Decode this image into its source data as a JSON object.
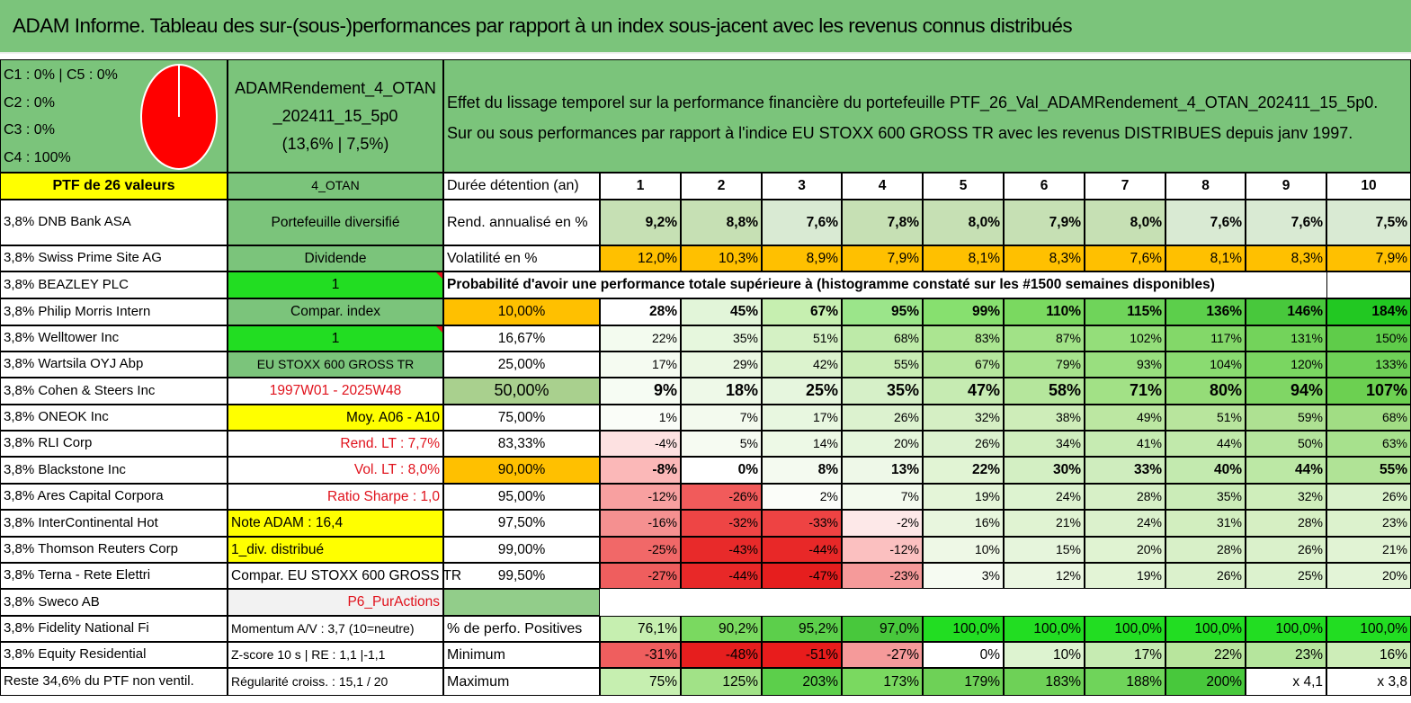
{
  "header": {
    "title": "ADAM Informe. Tableau des sur-(sous-)performances par rapport à un index sous-jacent avec les revenus connus distribués"
  },
  "pie": {
    "lines": [
      "C1 : 0% | C5 : 0%",
      "C2 : 0%",
      "C3 : 0%",
      "C4 : 100%"
    ],
    "color": "#ff0000"
  },
  "fund": {
    "name_line1": "ADAMRendement_4_OTAN",
    "name_line2": "_202411_15_5p0",
    "name_line3": "(13,6% | 7,5%)"
  },
  "description": {
    "line1": "Effet du lissage temporel sur la performance financière du portefeuille PTF_26_Val_ADAMRendement_4_OTAN_202411_15_5p0.",
    "line2": "Sur ou sous performances par rapport à l'indice EU STOXX 600 GROSS TR avec les revenus DISTRIBUES depuis janv 1997."
  },
  "left_header": "PTF de 26 valeurs",
  "holdings": [
    "3,8% DNB Bank ASA",
    "3,8% Swiss Prime Site AG",
    "3,8% BEAZLEY PLC",
    "3,8% Philip Morris Intern",
    "3,8% Welltower Inc",
    "3,8% Wartsila OYJ Abp",
    "3,8% Cohen & Steers Inc",
    "3,8% ONEOK Inc",
    "3,8% RLI Corp",
    "3,8% Blackstone Inc",
    "3,8% Ares Capital Corpora",
    "3,8% InterContinental Hot",
    "3,8% Thomson Reuters Corp",
    "3,8% Terna - Rete Elettri",
    "3,8% Sweco AB",
    "3,8% Fidelity National Fi",
    "3,8% Equity Residential",
    "Reste 34,6% du PTF non ventil."
  ],
  "info": [
    "4_OTAN",
    "Portefeuille diversifié",
    "Dividende",
    "1",
    "Compar. index",
    "1",
    "EU STOXX 600 GROSS TR",
    "1997W01 - 2025W48",
    "Moy. A06 - A10",
    "Rend. LT : 7,7%",
    "Vol. LT : 8,0%",
    "Ratio Sharpe : 1,0",
    "Note ADAM : 16,4",
    "1_div. distribué",
    "Compar. EU STOXX 600 GROSS TR",
    "P6_PurActions",
    "Momentum A/V : 3,7 (10=neutre)",
    "Z-score 10 s | RE : 1,1 |-1,1",
    "Régularité croiss. : 15,1 / 20"
  ],
  "table": {
    "duration_label": "Durée détention (an)",
    "years": [
      "1",
      "2",
      "3",
      "4",
      "5",
      "6",
      "7",
      "8",
      "9",
      "10"
    ],
    "rend_label": "Rend. annualisé en %",
    "rend": [
      "9,2%",
      "8,8%",
      "7,6%",
      "7,8%",
      "8,0%",
      "7,9%",
      "8,0%",
      "7,6%",
      "7,6%",
      "7,5%"
    ],
    "vol_label": "Volatilité en %",
    "vol": [
      "12,0%",
      "10,3%",
      "8,9%",
      "7,9%",
      "8,1%",
      "8,3%",
      "7,6%",
      "8,1%",
      "8,3%",
      "7,9%"
    ],
    "prob_label": "Probabilité d'avoir une performance totale supérieure à (histogramme constaté sur les #1500 semaines disponibles)",
    "prob_rows": [
      {
        "p": "10,00%",
        "v": [
          "28%",
          "45%",
          "67%",
          "95%",
          "99%",
          "110%",
          "115%",
          "136%",
          "146%",
          "184%"
        ]
      },
      {
        "p": "16,67%",
        "v": [
          "22%",
          "35%",
          "51%",
          "68%",
          "83%",
          "87%",
          "102%",
          "117%",
          "131%",
          "150%"
        ]
      },
      {
        "p": "25,00%",
        "v": [
          "17%",
          "29%",
          "42%",
          "55%",
          "67%",
          "79%",
          "93%",
          "104%",
          "120%",
          "133%"
        ]
      },
      {
        "p": "50,00%",
        "v": [
          "9%",
          "18%",
          "25%",
          "35%",
          "47%",
          "58%",
          "71%",
          "80%",
          "94%",
          "107%"
        ]
      },
      {
        "p": "75,00%",
        "v": [
          "1%",
          "7%",
          "17%",
          "26%",
          "32%",
          "38%",
          "49%",
          "51%",
          "59%",
          "68%"
        ]
      },
      {
        "p": "83,33%",
        "v": [
          "-4%",
          "5%",
          "14%",
          "20%",
          "26%",
          "34%",
          "41%",
          "44%",
          "50%",
          "63%"
        ]
      },
      {
        "p": "90,00%",
        "v": [
          "-8%",
          "0%",
          "8%",
          "13%",
          "22%",
          "30%",
          "33%",
          "40%",
          "44%",
          "55%"
        ]
      },
      {
        "p": "95,00%",
        "v": [
          "-12%",
          "-26%",
          "2%",
          "7%",
          "19%",
          "24%",
          "28%",
          "35%",
          "32%",
          "26%"
        ]
      },
      {
        "p": "97,50%",
        "v": [
          "-16%",
          "-32%",
          "-33%",
          "-2%",
          "16%",
          "21%",
          "24%",
          "31%",
          "28%",
          "23%"
        ]
      },
      {
        "p": "99,00%",
        "v": [
          "-25%",
          "-43%",
          "-44%",
          "-12%",
          "10%",
          "15%",
          "20%",
          "28%",
          "26%",
          "21%"
        ]
      },
      {
        "p": "99,50%",
        "v": [
          "-27%",
          "-44%",
          "-47%",
          "-23%",
          "3%",
          "12%",
          "19%",
          "26%",
          "25%",
          "20%"
        ]
      }
    ],
    "pos_label": "% de perfo. Positives",
    "pos": [
      "76,1%",
      "90,2%",
      "95,2%",
      "97,0%",
      "100,0%",
      "100,0%",
      "100,0%",
      "100,0%",
      "100,0%",
      "100,0%"
    ],
    "min_label": "Minimum",
    "min": [
      "-31%",
      "-48%",
      "-51%",
      "-27%",
      "0%",
      "10%",
      "17%",
      "22%",
      "23%",
      "16%"
    ],
    "max_label": "Maximum",
    "max": [
      "75%",
      "125%",
      "203%",
      "173%",
      "179%",
      "183%",
      "188%",
      "200%",
      "x 4,1",
      "x 3,8"
    ]
  },
  "colors": {
    "header_green": "#7bc47b",
    "yellow": "#ffff00",
    "orange": "#ffc000",
    "lime": "#22dd22",
    "red_text": "#e0121c"
  }
}
